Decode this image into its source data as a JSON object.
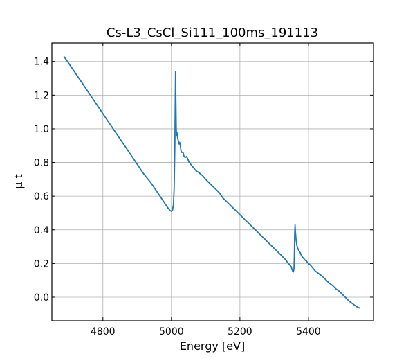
{
  "chart_data": {
    "type": "line",
    "title": "Cs-L3_CsCl_Si111_100ms_191113",
    "xlabel": "Energy [eV]",
    "ylabel": "μ t",
    "xlim": [
      4651,
      5590
    ],
    "ylim": [
      -0.14,
      1.51
    ],
    "xticks": [
      4800,
      5000,
      5200,
      5400
    ],
    "yticks": [
      0.0,
      0.2,
      0.4,
      0.6,
      0.8,
      1.0,
      1.2,
      1.4
    ],
    "xtick_labels": [
      "4800",
      "5000",
      "5200",
      "5400"
    ],
    "ytick_labels": [
      "0.0",
      "0.2",
      "0.4",
      "0.6",
      "0.8",
      "1.0",
      "1.2",
      "1.4"
    ],
    "grid": true,
    "line_color": "#1f77b4",
    "series": [
      {
        "x": [
          4686,
          4700,
          4720,
          4740,
          4760,
          4780,
          4800,
          4820,
          4840,
          4860,
          4880,
          4900,
          4920,
          4940,
          4960,
          4980,
          4990,
          4996,
          5000,
          5003,
          5006,
          5008,
          5010,
          5011,
          5012,
          5013,
          5014,
          5015,
          5016,
          5018,
          5020,
          5022,
          5024,
          5026,
          5028,
          5030,
          5034,
          5036,
          5040,
          5044,
          5048,
          5052,
          5056,
          5060,
          5064,
          5068,
          5072,
          5076,
          5080,
          5086,
          5092,
          5100,
          5110,
          5120,
          5130,
          5140,
          5150,
          5160,
          5180,
          5200,
          5220,
          5240,
          5260,
          5280,
          5300,
          5320,
          5330,
          5340,
          5346,
          5350,
          5352,
          5354,
          5356,
          5358,
          5359,
          5360,
          5361,
          5362,
          5364,
          5366,
          5368,
          5370,
          5372,
          5376,
          5380,
          5386,
          5390,
          5394,
          5400,
          5406,
          5412,
          5420,
          5430,
          5440,
          5450,
          5460,
          5470,
          5480,
          5490,
          5500,
          5520,
          5540,
          5550
        ],
        "y": [
          1.43,
          1.39,
          1.33,
          1.27,
          1.21,
          1.15,
          1.09,
          1.03,
          0.97,
          0.91,
          0.85,
          0.79,
          0.73,
          0.68,
          0.62,
          0.56,
          0.53,
          0.515,
          0.51,
          0.515,
          0.55,
          0.65,
          0.9,
          1.12,
          1.34,
          1.15,
          1.0,
          0.96,
          0.98,
          0.95,
          0.93,
          0.91,
          0.92,
          0.9,
          0.87,
          0.86,
          0.86,
          0.84,
          0.83,
          0.835,
          0.82,
          0.8,
          0.79,
          0.78,
          0.77,
          0.76,
          0.75,
          0.745,
          0.74,
          0.73,
          0.72,
          0.7,
          0.68,
          0.66,
          0.64,
          0.62,
          0.59,
          0.57,
          0.53,
          0.49,
          0.45,
          0.41,
          0.37,
          0.33,
          0.29,
          0.25,
          0.23,
          0.205,
          0.19,
          0.18,
          0.165,
          0.155,
          0.15,
          0.17,
          0.25,
          0.38,
          0.43,
          0.39,
          0.34,
          0.31,
          0.295,
          0.285,
          0.275,
          0.265,
          0.245,
          0.23,
          0.22,
          0.215,
          0.2,
          0.19,
          0.175,
          0.155,
          0.14,
          0.125,
          0.105,
          0.085,
          0.07,
          0.05,
          0.035,
          0.015,
          -0.025,
          -0.055,
          -0.065
        ]
      }
    ]
  }
}
